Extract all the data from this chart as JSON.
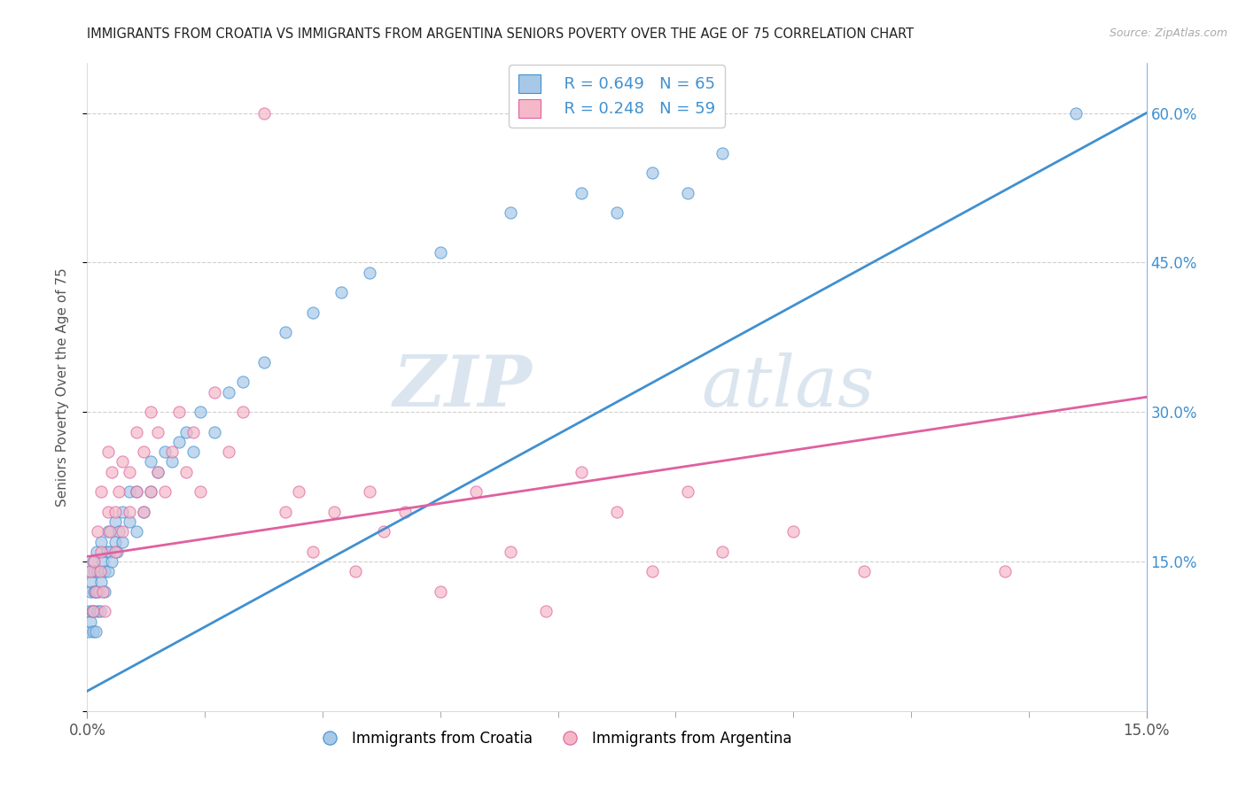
{
  "title": "IMMIGRANTS FROM CROATIA VS IMMIGRANTS FROM ARGENTINA SENIORS POVERTY OVER THE AGE OF 75 CORRELATION CHART",
  "source": "Source: ZipAtlas.com",
  "ylabel": "Seniors Poverty Over the Age of 75",
  "legend_r_croatia": "R = 0.649",
  "legend_n_croatia": "N = 65",
  "legend_r_argentina": "R = 0.248",
  "legend_n_argentina": "N = 59",
  "color_croatia": "#a8c8e8",
  "color_argentina": "#f4b8c8",
  "color_croatia_line": "#4090d0",
  "color_argentina_line": "#e060a0",
  "watermark_zip": "ZIP",
  "watermark_atlas": "atlas",
  "xlim": [
    0,
    0.15
  ],
  "ylim": [
    0,
    0.65
  ],
  "right_ytick_labels": [
    "15.0%",
    "30.0%",
    "45.0%",
    "60.0%"
  ],
  "right_ytick_vals": [
    0.15,
    0.3,
    0.45,
    0.6
  ],
  "background_color": "#ffffff",
  "grid_color": "#d0d0d0",
  "croatia_x": [
    0.0002,
    0.0003,
    0.0004,
    0.0004,
    0.0005,
    0.0006,
    0.0007,
    0.0008,
    0.0008,
    0.0009,
    0.001,
    0.001,
    0.0012,
    0.0012,
    0.0013,
    0.0014,
    0.0015,
    0.0016,
    0.0018,
    0.002,
    0.002,
    0.0022,
    0.0024,
    0.0025,
    0.0028,
    0.003,
    0.003,
    0.0032,
    0.0035,
    0.004,
    0.004,
    0.0042,
    0.0045,
    0.005,
    0.005,
    0.006,
    0.006,
    0.007,
    0.007,
    0.008,
    0.009,
    0.009,
    0.01,
    0.011,
    0.012,
    0.013,
    0.014,
    0.015,
    0.016,
    0.018,
    0.02,
    0.022,
    0.025,
    0.028,
    0.032,
    0.036,
    0.04,
    0.05,
    0.06,
    0.07,
    0.075,
    0.08,
    0.085,
    0.09,
    0.14
  ],
  "croatia_y": [
    0.08,
    0.1,
    0.12,
    0.14,
    0.09,
    0.13,
    0.1,
    0.08,
    0.15,
    0.12,
    0.1,
    0.14,
    0.08,
    0.12,
    0.16,
    0.1,
    0.14,
    0.12,
    0.1,
    0.13,
    0.17,
    0.15,
    0.12,
    0.14,
    0.16,
    0.14,
    0.18,
    0.16,
    0.15,
    0.17,
    0.19,
    0.16,
    0.18,
    0.2,
    0.17,
    0.19,
    0.22,
    0.18,
    0.22,
    0.2,
    0.22,
    0.25,
    0.24,
    0.26,
    0.25,
    0.27,
    0.28,
    0.26,
    0.3,
    0.28,
    0.32,
    0.33,
    0.35,
    0.38,
    0.4,
    0.42,
    0.44,
    0.46,
    0.5,
    0.52,
    0.5,
    0.54,
    0.52,
    0.56,
    0.6
  ],
  "argentina_x": [
    0.0005,
    0.0008,
    0.001,
    0.0012,
    0.0015,
    0.0018,
    0.002,
    0.002,
    0.0022,
    0.0025,
    0.003,
    0.003,
    0.0032,
    0.0035,
    0.004,
    0.004,
    0.0045,
    0.005,
    0.005,
    0.006,
    0.006,
    0.007,
    0.007,
    0.008,
    0.008,
    0.009,
    0.009,
    0.01,
    0.01,
    0.011,
    0.012,
    0.013,
    0.014,
    0.015,
    0.016,
    0.018,
    0.02,
    0.022,
    0.025,
    0.028,
    0.03,
    0.032,
    0.035,
    0.038,
    0.04,
    0.042,
    0.045,
    0.05,
    0.055,
    0.06,
    0.065,
    0.07,
    0.075,
    0.08,
    0.085,
    0.09,
    0.1,
    0.11,
    0.13
  ],
  "argentina_y": [
    0.14,
    0.1,
    0.15,
    0.12,
    0.18,
    0.14,
    0.16,
    0.22,
    0.12,
    0.1,
    0.26,
    0.2,
    0.18,
    0.24,
    0.16,
    0.2,
    0.22,
    0.18,
    0.25,
    0.2,
    0.24,
    0.22,
    0.28,
    0.2,
    0.26,
    0.22,
    0.3,
    0.24,
    0.28,
    0.22,
    0.26,
    0.3,
    0.24,
    0.28,
    0.22,
    0.32,
    0.26,
    0.3,
    0.6,
    0.2,
    0.22,
    0.16,
    0.2,
    0.14,
    0.22,
    0.18,
    0.2,
    0.12,
    0.22,
    0.16,
    0.1,
    0.24,
    0.2,
    0.14,
    0.22,
    0.16,
    0.18,
    0.14,
    0.14
  ]
}
